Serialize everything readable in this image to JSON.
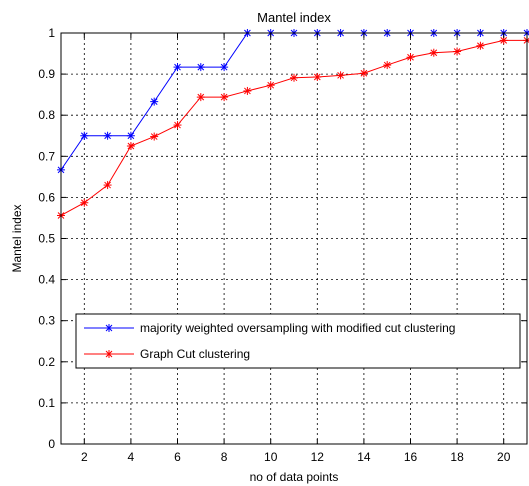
{
  "chart_data": {
    "type": "line",
    "title": "Mantel index",
    "xlabel": "no of data points",
    "ylabel": "Mantel index",
    "xlim": [
      1,
      21
    ],
    "ylim": [
      0,
      1
    ],
    "x_ticks": [
      2,
      4,
      6,
      8,
      10,
      12,
      14,
      16,
      18,
      20
    ],
    "y_ticks": [
      0,
      0.1,
      0.2,
      0.3,
      0.4,
      0.5,
      0.6,
      0.7,
      0.8,
      0.9,
      1
    ],
    "grid": true,
    "legend_position": "lower-center",
    "x": [
      1,
      2,
      3,
      4,
      5,
      6,
      7,
      8,
      9,
      10,
      11,
      12,
      13,
      14,
      15,
      16,
      17,
      18,
      19,
      20,
      21
    ],
    "series": [
      {
        "name": "majority weighted oversampling with modified cut clustering",
        "color": "#0000ff",
        "marker": "asterisk",
        "values": [
          0.667,
          0.75,
          0.75,
          0.75,
          0.833,
          0.917,
          0.917,
          0.917,
          1,
          1,
          1,
          1,
          1,
          1,
          1,
          1,
          1,
          1,
          1,
          1,
          1
        ]
      },
      {
        "name": "Graph Cut clustering",
        "color": "#ff0000",
        "marker": "asterisk",
        "values": [
          0.556,
          0.587,
          0.63,
          0.725,
          0.748,
          0.776,
          0.844,
          0.844,
          0.859,
          0.873,
          0.891,
          0.893,
          0.897,
          0.902,
          0.922,
          0.941,
          0.952,
          0.955,
          0.969,
          0.982,
          0.982
        ]
      }
    ]
  }
}
